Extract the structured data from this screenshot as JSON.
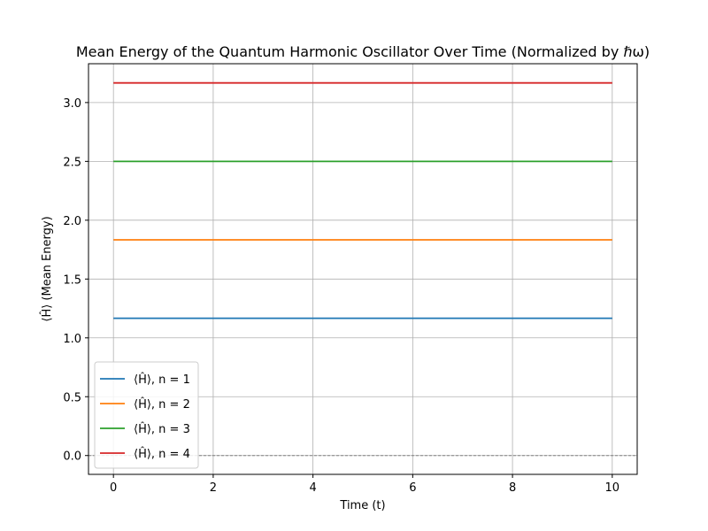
{
  "chart_data": {
    "type": "line",
    "title": "Mean Energy of the Quantum Harmonic Oscillator Over Time (Normalized by ℏω)",
    "xlabel": "Time (t)",
    "ylabel": "⟨Ĥ⟩ (Mean Energy)",
    "xlim": [
      -0.5,
      10.5
    ],
    "ylim": [
      -0.16,
      3.33
    ],
    "xticks": [
      0,
      2,
      4,
      6,
      8,
      10
    ],
    "xtick_labels": [
      "0",
      "2",
      "4",
      "6",
      "8",
      "10"
    ],
    "yticks": [
      0.0,
      0.5,
      1.0,
      1.5,
      2.0,
      2.5,
      3.0
    ],
    "ytick_labels": [
      "0.0",
      "0.5",
      "1.0",
      "1.5",
      "2.0",
      "2.5",
      "3.0"
    ],
    "grid": true,
    "legend_position": "lower-left",
    "reference_line": {
      "y": 0,
      "style": "dashed",
      "color": "#808080"
    },
    "series": [
      {
        "name": "⟨Ĥ⟩, n = 1",
        "color": "#1f77b4",
        "x": [
          0,
          10
        ],
        "y": [
          1.1667,
          1.1667
        ]
      },
      {
        "name": "⟨Ĥ⟩, n = 2",
        "color": "#ff7f0e",
        "x": [
          0,
          10
        ],
        "y": [
          1.8333,
          1.8333
        ]
      },
      {
        "name": "⟨Ĥ⟩, n = 3",
        "color": "#2ca02c",
        "x": [
          0,
          10
        ],
        "y": [
          2.5,
          2.5
        ]
      },
      {
        "name": "⟨Ĥ⟩, n = 4",
        "color": "#d62728",
        "x": [
          0,
          10
        ],
        "y": [
          3.1667,
          3.1667
        ]
      }
    ]
  }
}
